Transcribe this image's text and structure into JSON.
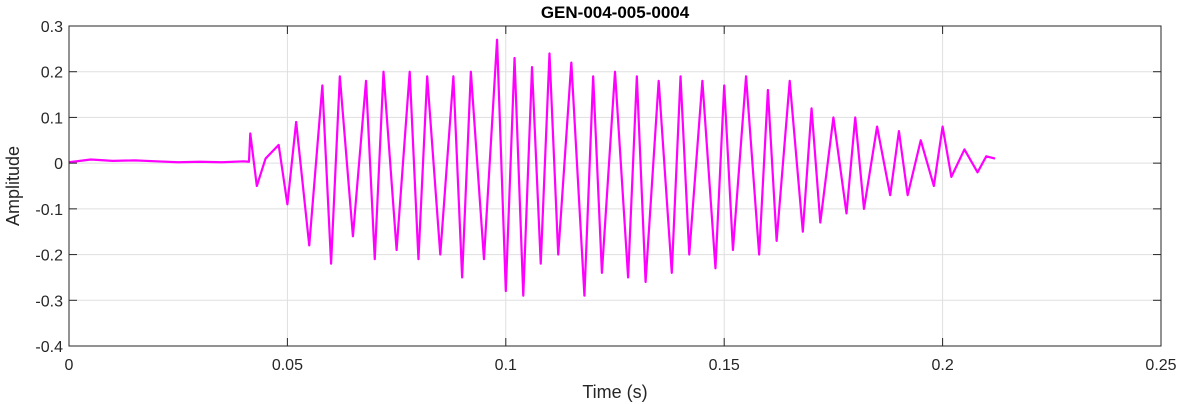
{
  "chart_data": {
    "type": "line",
    "title": "GEN-004-005-0004",
    "xlabel": "Time (s)",
    "ylabel": "Amplitude",
    "xlim": [
      0,
      0.25
    ],
    "ylim": [
      -0.4,
      0.3
    ],
    "xticks": [
      0,
      0.05,
      0.1,
      0.15,
      0.2,
      0.25
    ],
    "xtick_labels": [
      "0",
      "0.05",
      "0.1",
      "0.15",
      "0.2",
      "0.25"
    ],
    "yticks": [
      -0.4,
      -0.3,
      -0.2,
      -0.1,
      0,
      0.1,
      0.2,
      0.3
    ],
    "ytick_labels": [
      "-0.4",
      "-0.3",
      "-0.2",
      "-0.1",
      "0",
      "0.1",
      "0.2",
      "0.3"
    ],
    "grid": true,
    "series": [
      {
        "color": "#ff00ff",
        "x": [
          0,
          0.005,
          0.01,
          0.015,
          0.02,
          0.025,
          0.03,
          0.035,
          0.04,
          0.0412,
          0.0415,
          0.043,
          0.045,
          0.048,
          0.05,
          0.052,
          0.055,
          0.058,
          0.06,
          0.062,
          0.065,
          0.068,
          0.07,
          0.072,
          0.075,
          0.078,
          0.08,
          0.082,
          0.085,
          0.088,
          0.09,
          0.092,
          0.095,
          0.098,
          0.1,
          0.102,
          0.104,
          0.106,
          0.108,
          0.11,
          0.112,
          0.115,
          0.118,
          0.12,
          0.122,
          0.125,
          0.128,
          0.13,
          0.132,
          0.135,
          0.138,
          0.14,
          0.142,
          0.145,
          0.148,
          0.15,
          0.152,
          0.155,
          0.158,
          0.16,
          0.162,
          0.165,
          0.168,
          0.17,
          0.172,
          0.175,
          0.178,
          0.18,
          0.182,
          0.185,
          0.188,
          0.19,
          0.192,
          0.195,
          0.198,
          0.2,
          0.202,
          0.205,
          0.208,
          0.21,
          0.212
        ],
        "y": [
          0.002,
          0.008,
          0.005,
          0.006,
          0.004,
          0.002,
          0.003,
          0.002,
          0.004,
          0.003,
          0.065,
          -0.05,
          0.01,
          0.04,
          -0.09,
          0.09,
          -0.18,
          0.17,
          -0.22,
          0.19,
          -0.16,
          0.18,
          -0.21,
          0.2,
          -0.19,
          0.2,
          -0.21,
          0.19,
          -0.2,
          0.19,
          -0.25,
          0.2,
          -0.21,
          0.27,
          -0.28,
          0.23,
          -0.29,
          0.21,
          -0.22,
          0.24,
          -0.2,
          0.22,
          -0.29,
          0.19,
          -0.24,
          0.2,
          -0.25,
          0.19,
          -0.26,
          0.18,
          -0.24,
          0.19,
          -0.2,
          0.18,
          -0.23,
          0.17,
          -0.19,
          0.19,
          -0.2,
          0.16,
          -0.17,
          0.18,
          -0.15,
          0.12,
          -0.13,
          0.1,
          -0.11,
          0.1,
          -0.1,
          0.08,
          -0.07,
          0.07,
          -0.07,
          0.05,
          -0.05,
          0.08,
          -0.03,
          0.03,
          -0.02,
          0.015,
          0.01
        ]
      }
    ]
  }
}
